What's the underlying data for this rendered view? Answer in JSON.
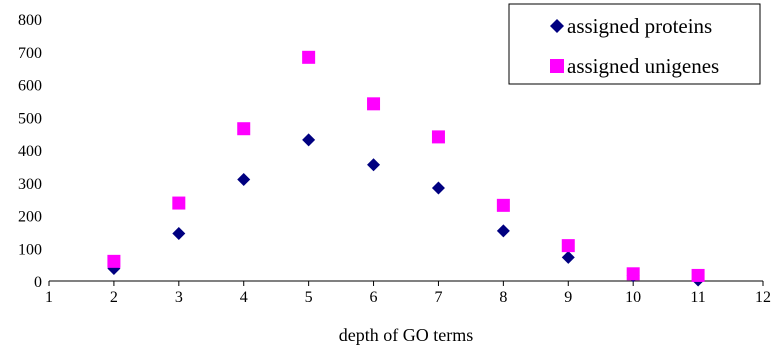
{
  "chart_data": {
    "type": "scatter",
    "title": "",
    "xlabel": "depth of GO terms",
    "ylabel": "",
    "xlim": [
      1,
      12
    ],
    "ylim": [
      0,
      800
    ],
    "x_ticks": [
      1,
      2,
      3,
      4,
      5,
      6,
      7,
      8,
      9,
      10,
      11,
      12
    ],
    "y_ticks": [
      0,
      100,
      200,
      300,
      400,
      500,
      600,
      700,
      800
    ],
    "grid": false,
    "legend_position": "top-right",
    "series": [
      {
        "name": "assigned proteins",
        "marker": "diamond",
        "color": "#000080",
        "x": [
          2,
          3,
          4,
          5,
          6,
          7,
          8,
          9,
          10,
          11
        ],
        "y": [
          38,
          145,
          310,
          431,
          355,
          284,
          153,
          72,
          16,
          3
        ]
      },
      {
        "name": "assigned unigenes",
        "marker": "square",
        "color": "#ff00ff",
        "x": [
          2,
          3,
          4,
          5,
          6,
          7,
          8,
          9,
          10,
          11
        ],
        "y": [
          60,
          238,
          465,
          683,
          541,
          440,
          231,
          108,
          22,
          17
        ]
      }
    ]
  }
}
